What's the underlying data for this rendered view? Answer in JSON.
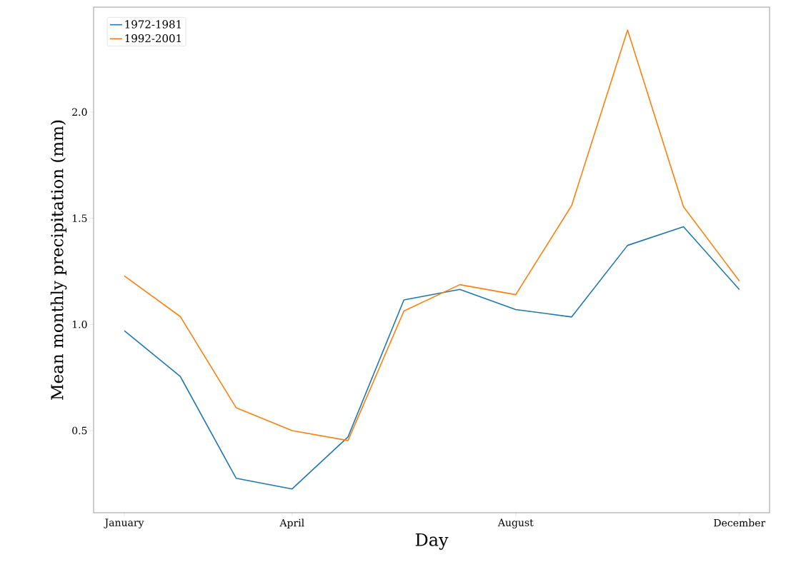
{
  "chart_data": {
    "type": "line",
    "xlabel": "Day",
    "ylabel": "Mean monthly precipitation (mm)",
    "categories": [
      "January",
      null,
      null,
      "April",
      null,
      null,
      null,
      "August",
      null,
      null,
      null,
      "December"
    ],
    "series": [
      {
        "name": "1972-1981",
        "color": "#1f77b4",
        "values": [
          0.97,
          0.755,
          0.275,
          0.225,
          0.47,
          1.115,
          1.165,
          1.07,
          1.035,
          1.372,
          1.46,
          1.164
        ]
      },
      {
        "name": "1992-2001",
        "color": "#ff7f0e",
        "values": [
          1.228,
          1.037,
          0.607,
          0.5,
          0.453,
          1.063,
          1.187,
          1.14,
          1.56,
          2.386,
          1.554,
          1.204
        ]
      }
    ],
    "ylim": [
      0.113,
      2.494
    ],
    "yticks": [
      0.5,
      {
        "value": 1,
        "label": "1.0"
      },
      1.5,
      {
        "value": 2,
        "label": "2.0"
      }
    ],
    "legend": "top left",
    "grid": false,
    "marker": "none",
    "line_style": "solid"
  }
}
